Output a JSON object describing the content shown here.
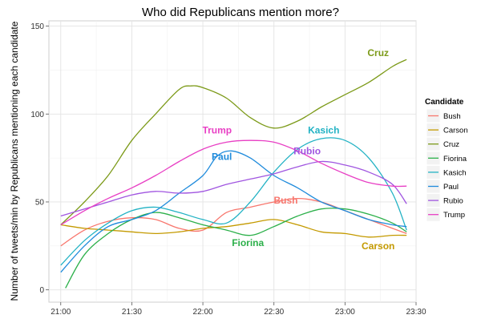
{
  "chart_data": {
    "type": "line",
    "title": "Who did Republicans mention more?",
    "xlabel": "",
    "ylabel": "Number of tweets/min by Republicans mentioning each candidate",
    "x_ticks": [
      "21:00",
      "21:30",
      "22:00",
      "22:30",
      "23:00",
      "23:30"
    ],
    "x_range_minutes": [
      -5,
      150
    ],
    "x_tick_minutes": [
      0,
      30,
      60,
      90,
      120,
      150
    ],
    "ylim": [
      -7,
      153
    ],
    "y_ticks": [
      0,
      50,
      100,
      150
    ],
    "grid": true,
    "legend": {
      "title": "Candidate",
      "placement": "right"
    },
    "series": [
      {
        "name": "Bush",
        "color": "#f8766d",
        "x": [
          0,
          10,
          20,
          30,
          40,
          50,
          60,
          70,
          80,
          90,
          100,
          110,
          120,
          130,
          140,
          146
        ],
        "y": [
          25,
          34,
          39,
          41,
          40,
          35,
          34,
          44,
          47,
          50,
          52,
          50,
          45,
          40,
          35,
          32
        ]
      },
      {
        "name": "Carson",
        "color": "#c49a00",
        "x": [
          0,
          10,
          20,
          30,
          40,
          50,
          60,
          70,
          80,
          90,
          100,
          110,
          120,
          130,
          140,
          146
        ],
        "y": [
          37,
          35,
          34,
          33,
          32,
          33,
          35,
          36,
          38,
          40,
          37,
          33,
          32,
          30,
          31,
          31
        ]
      },
      {
        "name": "Cruz",
        "color": "#7c9a18",
        "x": [
          0,
          10,
          20,
          30,
          40,
          50,
          55,
          60,
          70,
          80,
          90,
          100,
          110,
          120,
          130,
          140,
          146
        ],
        "y": [
          37,
          50,
          65,
          85,
          100,
          114,
          116,
          115,
          109,
          98,
          92,
          96,
          104,
          111,
          118,
          127,
          131
        ]
      },
      {
        "name": "Fiorina",
        "color": "#2cb04a",
        "x": [
          2,
          10,
          20,
          30,
          40,
          50,
          60,
          70,
          80,
          90,
          100,
          110,
          120,
          130,
          140,
          146
        ],
        "y": [
          1,
          20,
          32,
          40,
          44,
          41,
          37,
          34,
          31,
          36,
          42,
          46,
          46,
          43,
          38,
          33
        ]
      },
      {
        "name": "Kasich",
        "color": "#22b2c4",
        "x": [
          0,
          10,
          20,
          30,
          40,
          50,
          60,
          70,
          80,
          90,
          100,
          110,
          120,
          130,
          140,
          146
        ],
        "y": [
          14,
          28,
          38,
          45,
          47,
          44,
          40,
          38,
          50,
          67,
          80,
          86,
          85,
          75,
          55,
          34
        ]
      },
      {
        "name": "Paul",
        "color": "#1f8bdc",
        "x": [
          0,
          10,
          20,
          30,
          40,
          50,
          60,
          66,
          72,
          80,
          90,
          100,
          110,
          120,
          130,
          140,
          146
        ],
        "y": [
          10,
          25,
          36,
          40,
          45,
          55,
          65,
          76,
          79,
          75,
          65,
          58,
          50,
          45,
          40,
          37,
          36
        ]
      },
      {
        "name": "Rubio",
        "color": "#a055e0",
        "x": [
          0,
          10,
          20,
          30,
          40,
          50,
          60,
          70,
          80,
          90,
          100,
          110,
          120,
          130,
          140,
          146
        ],
        "y": [
          42,
          46,
          50,
          54,
          56,
          55,
          56,
          60,
          63,
          66,
          70,
          73,
          71,
          67,
          60,
          49
        ]
      },
      {
        "name": "Trump",
        "color": "#e83fc4",
        "x": [
          0,
          10,
          20,
          30,
          40,
          50,
          60,
          70,
          80,
          90,
          100,
          110,
          120,
          130,
          140,
          146
        ],
        "y": [
          37,
          45,
          52,
          58,
          65,
          73,
          80,
          84,
          85,
          84,
          79,
          72,
          66,
          61,
          59,
          59
        ]
      }
    ],
    "annotations": [
      {
        "text": "Cruz",
        "series": "Cruz",
        "x": 134,
        "y": 133
      },
      {
        "text": "Trump",
        "series": "Trump",
        "x": 66,
        "y": 89
      },
      {
        "text": "Kasich",
        "series": "Kasich",
        "x": 111,
        "y": 89
      },
      {
        "text": "Paul",
        "series": "Paul",
        "x": 68,
        "y": 74
      },
      {
        "text": "Rubio",
        "series": "Rubio",
        "x": 104,
        "y": 77
      },
      {
        "text": "Bush",
        "series": "Bush",
        "x": 95,
        "y": 49
      },
      {
        "text": "Fiorina",
        "series": "Fiorina",
        "x": 79,
        "y": 25
      },
      {
        "text": "Carson",
        "series": "Carson",
        "x": 134,
        "y": 23
      }
    ]
  }
}
